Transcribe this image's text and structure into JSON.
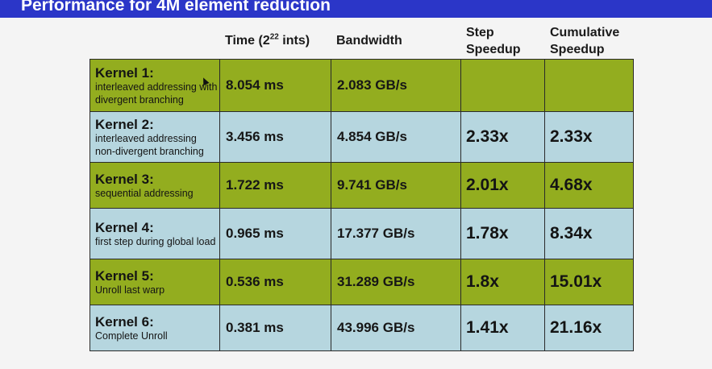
{
  "slide": {
    "title": "Performance for 4M element reduction"
  },
  "headers": {
    "time_prefix": "Time (2",
    "time_exp": "22",
    "time_suffix": " ints)",
    "bandwidth": "Bandwidth",
    "step_line1": "Step",
    "step_line2": "Speedup",
    "cum_line1": "Cumulative",
    "cum_line2": "Speedup"
  },
  "rows": [
    {
      "name": "Kernel 1:",
      "desc": "interleaved addressing with divergent branching",
      "time": "8.054 ms",
      "bandwidth": "2.083 GB/s",
      "step": "",
      "cumulative": ""
    },
    {
      "name": "Kernel 2:",
      "desc": "interleaved addressing non-divergent branching",
      "time": "3.456 ms",
      "bandwidth": "4.854 GB/s",
      "step": "2.33x",
      "cumulative": "2.33x"
    },
    {
      "name": "Kernel 3:",
      "desc": "sequential addressing",
      "time": "1.722 ms",
      "bandwidth": "9.741 GB/s",
      "step": "2.01x",
      "cumulative": "4.68x"
    },
    {
      "name": "Kernel 4:",
      "desc": "first step during global load",
      "time": "0.965 ms",
      "bandwidth": "17.377 GB/s",
      "step": "1.78x",
      "cumulative": "8.34x"
    },
    {
      "name": "Kernel 5:",
      "desc": "Unroll last warp",
      "time": "0.536 ms",
      "bandwidth": "31.289 GB/s",
      "step": "1.8x",
      "cumulative": "15.01x"
    },
    {
      "name": "Kernel 6:",
      "desc": "Complete Unroll",
      "time": "0.381 ms",
      "bandwidth": "43.996 GB/s",
      "step": "1.41x",
      "cumulative": "21.16x"
    }
  ],
  "colors": {
    "title_bar": "#2b36c8",
    "row_green": "#93ad1f",
    "row_blue": "#b6d6df"
  }
}
